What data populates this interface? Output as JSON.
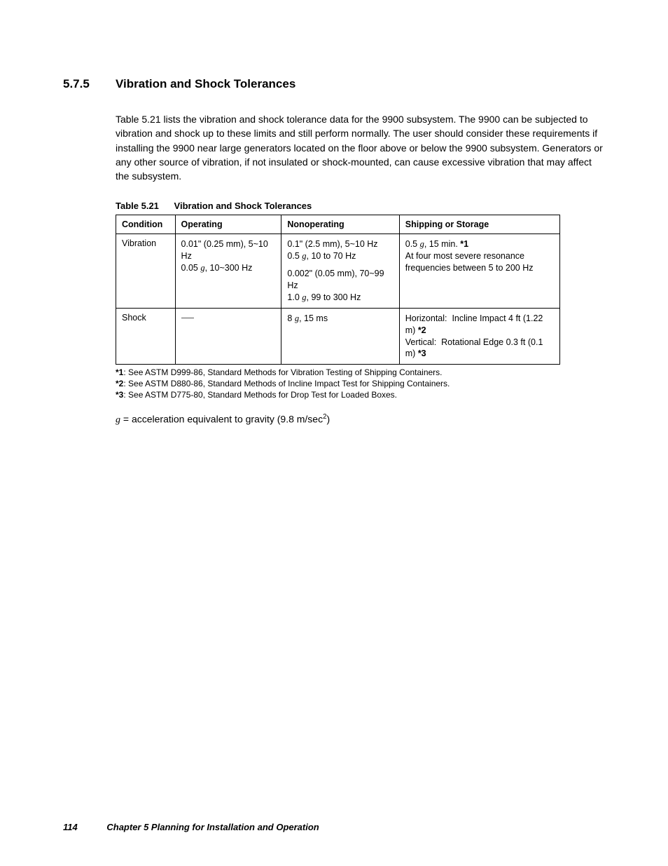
{
  "heading": {
    "number": "5.7.5",
    "title": "Vibration and Shock Tolerances"
  },
  "paragraph": "Table 5.21 lists the vibration and shock tolerance data for the 9900 subsystem. The 9900 can be subjected to vibration and shock up to these limits and still perform normally. The user should consider these requirements if installing the 9900 near large generators located on the floor above or below the 9900 subsystem. Generators or any other source of vibration, if not insulated or shock-mounted, can cause excessive vibration that may affect the subsystem.",
  "table": {
    "caption_label": "Table 5.21",
    "caption_title": "Vibration and Shock Tolerances",
    "columns": [
      "Condition",
      "Operating",
      "Nonoperating",
      "Shipping or Storage"
    ],
    "rows": [
      {
        "condition": "Vibration",
        "operating": [
          "0.01\" (0.25 mm), 5~10 Hz",
          "0.05 g, 10~300 Hz"
        ],
        "nonoperating": [
          "0.1\" (2.5 mm), 5~10 Hz",
          "0.5 g, 10 to 70 Hz",
          "",
          "0.002\" (0.05 mm), 70~99 Hz",
          "1.0 g, 99 to 300 Hz"
        ],
        "shipping": [
          "0.5 g, 15 min. *1",
          "At four most severe resonance frequencies between 5 to 200 Hz"
        ]
      },
      {
        "condition": "Shock",
        "operating": [
          "—"
        ],
        "nonoperating": [
          "8 g, 15 ms"
        ],
        "shipping": [
          "Horizontal:  Incline Impact 4 ft (1.22 m) *2",
          "Vertical:  Rotational Edge 0.3 ft (0.1 m) *3"
        ]
      }
    ]
  },
  "footnotes": [
    {
      "mark": "*1",
      "text": ":  See ASTM D999-86, Standard Methods for Vibration Testing of Shipping Containers."
    },
    {
      "mark": "*2",
      "text": ":  See ASTM D880-86, Standard Methods of Incline Impact Test for Shipping Containers."
    },
    {
      "mark": "*3",
      "text": ":  See ASTM D775-80, Standard Methods for Drop Test for Loaded Boxes."
    }
  ],
  "equation": {
    "prefix_var": "g",
    "text": " = acceleration equivalent to gravity (9.8 m/sec",
    "sup": "2",
    "suffix": ")"
  },
  "footer": {
    "page": "114",
    "chapter": "Chapter 5    Planning for Installation and Operation"
  }
}
